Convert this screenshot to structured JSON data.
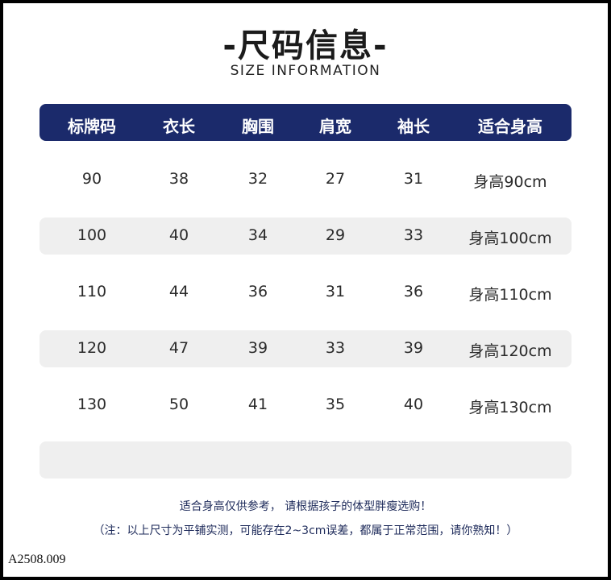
{
  "title": "-尺码信息-",
  "subtitle": "SIZE INFORMATION",
  "table": {
    "headers": [
      "标牌码",
      "衣长",
      "胸围",
      "肩宽",
      "袖长",
      "适合身高"
    ],
    "rows": [
      [
        "90",
        "38",
        "32",
        "27",
        "31",
        "身高90cm"
      ],
      [
        "100",
        "40",
        "34",
        "29",
        "33",
        "身高100cm"
      ],
      [
        "110",
        "44",
        "36",
        "31",
        "36",
        "身高110cm"
      ],
      [
        "120",
        "47",
        "39",
        "33",
        "39",
        "身高120cm"
      ],
      [
        "130",
        "50",
        "41",
        "35",
        "40",
        "身高130cm"
      ]
    ],
    "header_color": "#1b2a6b",
    "stripe_color": "#efefef"
  },
  "notes": {
    "line1": "适合身高仅供参考， 请根据孩子的体型胖瘦选购！",
    "line2": "（注：以上尺寸为平铺实测，可能存在2~3cm误差，都属于正常范围，请你熟知！）"
  },
  "product_code": "A2508.009"
}
